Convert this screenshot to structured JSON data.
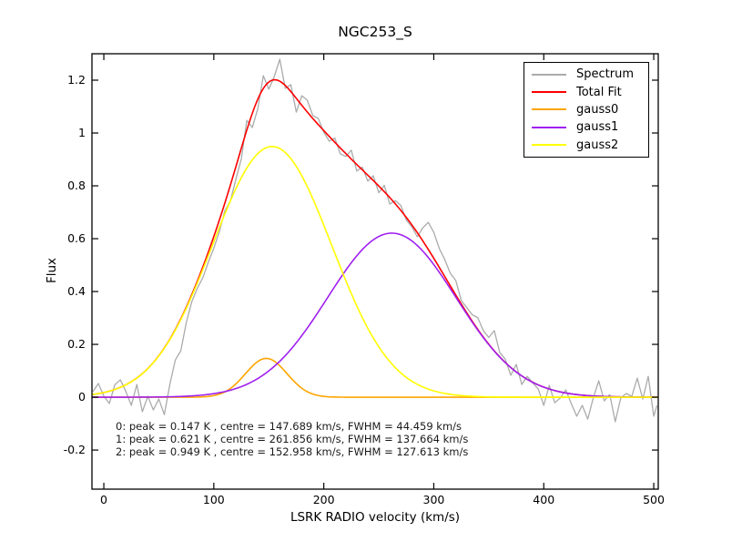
{
  "chart_data": {
    "type": "line",
    "title": "NGC253_S",
    "xlabel": "LSRK RADIO velocity (km/s)",
    "ylabel": "Flux",
    "xlim": [
      -10.8,
      504.1
    ],
    "ylim": [
      -0.348,
      1.3
    ],
    "x_ticks": [
      0,
      100,
      200,
      300,
      400,
      500
    ],
    "y_ticks": [
      -0.2,
      0,
      0.2,
      0.4,
      0.6,
      0.8,
      1,
      1.2
    ],
    "grid": false,
    "legend_position": "upper right",
    "series": [
      {
        "name": "Spectrum",
        "kind": "noisy_data",
        "color": "#ababab",
        "points": [
          [
            -10,
            0.021
          ],
          [
            -5,
            0.052
          ],
          [
            0,
            0.004
          ],
          [
            5,
            -0.024
          ],
          [
            10,
            0.047
          ],
          [
            15,
            0.066
          ],
          [
            20,
            0.022
          ],
          [
            25,
            -0.031
          ],
          [
            30,
            0.048
          ],
          [
            35,
            -0.055
          ],
          [
            40,
            0.003
          ],
          [
            45,
            -0.048
          ],
          [
            50,
            -0.007
          ],
          [
            55,
            -0.066
          ],
          [
            60,
            0.048
          ],
          [
            65,
            0.141
          ],
          [
            70,
            0.176
          ],
          [
            75,
            0.283
          ],
          [
            80,
            0.362
          ],
          [
            85,
            0.412
          ],
          [
            90,
            0.452
          ],
          [
            95,
            0.511
          ],
          [
            100,
            0.564
          ],
          [
            105,
            0.626
          ],
          [
            110,
            0.705
          ],
          [
            115,
            0.742
          ],
          [
            120,
            0.824
          ],
          [
            125,
            0.902
          ],
          [
            130,
            1.048
          ],
          [
            135,
            1.021
          ],
          [
            140,
            1.092
          ],
          [
            145,
            1.217
          ],
          [
            150,
            1.166
          ],
          [
            155,
            1.214
          ],
          [
            160,
            1.279
          ],
          [
            165,
            1.169
          ],
          [
            170,
            1.183
          ],
          [
            175,
            1.079
          ],
          [
            180,
            1.141
          ],
          [
            185,
            1.124
          ],
          [
            190,
            1.066
          ],
          [
            195,
            1.055
          ],
          [
            200,
            1.003
          ],
          [
            205,
            0.969
          ],
          [
            210,
            0.981
          ],
          [
            215,
            0.921
          ],
          [
            220,
            0.911
          ],
          [
            225,
            0.935
          ],
          [
            230,
            0.856
          ],
          [
            235,
            0.871
          ],
          [
            240,
            0.818
          ],
          [
            245,
            0.838
          ],
          [
            250,
            0.774
          ],
          [
            255,
            0.802
          ],
          [
            260,
            0.731
          ],
          [
            265,
            0.744
          ],
          [
            270,
            0.726
          ],
          [
            275,
            0.671
          ],
          [
            280,
            0.645
          ],
          [
            285,
            0.607
          ],
          [
            290,
            0.641
          ],
          [
            295,
            0.662
          ],
          [
            300,
            0.624
          ],
          [
            305,
            0.563
          ],
          [
            310,
            0.521
          ],
          [
            315,
            0.469
          ],
          [
            320,
            0.442
          ],
          [
            325,
            0.366
          ],
          [
            330,
            0.339
          ],
          [
            335,
            0.312
          ],
          [
            340,
            0.301
          ],
          [
            345,
            0.252
          ],
          [
            350,
            0.226
          ],
          [
            355,
            0.252
          ],
          [
            360,
            0.169
          ],
          [
            365,
            0.144
          ],
          [
            370,
            0.083
          ],
          [
            375,
            0.124
          ],
          [
            380,
            0.048
          ],
          [
            385,
            0.079
          ],
          [
            390,
            0.054
          ],
          [
            395,
            0.031
          ],
          [
            400,
            -0.031
          ],
          [
            405,
            0.045
          ],
          [
            410,
            -0.021
          ],
          [
            415,
            -0.003
          ],
          [
            420,
            0.028
          ],
          [
            425,
            -0.024
          ],
          [
            430,
            -0.072
          ],
          [
            435,
            -0.031
          ],
          [
            440,
            -0.083
          ],
          [
            445,
            -0.003
          ],
          [
            450,
            0.062
          ],
          [
            455,
            -0.014
          ],
          [
            460,
            0.01
          ],
          [
            465,
            -0.093
          ],
          [
            470,
            -0.003
          ],
          [
            475,
            0.014
          ],
          [
            480,
            0.003
          ],
          [
            485,
            0.072
          ],
          [
            490,
            -0.007
          ],
          [
            495,
            0.079
          ],
          [
            500,
            -0.072
          ],
          [
            503,
            -0.031
          ]
        ]
      },
      {
        "name": "Total Fit",
        "kind": "sum_of_gaussians",
        "color": "#ff0000"
      },
      {
        "name": "gauss0",
        "kind": "gaussian",
        "color": "#ffa500",
        "gaussian": {
          "peak_K": 0.147,
          "centre_kms": 147.689,
          "fwhm_kms": 44.459
        }
      },
      {
        "name": "gauss1",
        "kind": "gaussian",
        "color": "#a020f0",
        "gaussian": {
          "peak_K": 0.621,
          "centre_kms": 261.856,
          "fwhm_kms": 137.664
        }
      },
      {
        "name": "gauss2",
        "kind": "gaussian",
        "color": "#ffff00",
        "gaussian": {
          "peak_K": 0.949,
          "centre_kms": 152.958,
          "fwhm_kms": 127.613
        }
      }
    ]
  },
  "legend": {
    "entries": [
      {
        "label": "Spectrum",
        "color": "#ababab"
      },
      {
        "label": "Total Fit",
        "color": "#ff0000"
      },
      {
        "label": "gauss0",
        "color": "#ffa500"
      },
      {
        "label": "gauss1",
        "color": "#a020f0"
      },
      {
        "label": "gauss2",
        "color": "#ffff00"
      }
    ]
  },
  "annotation": {
    "lines": [
      "0: peak = 0.147 K , centre = 147.689 km/s, FWHM = 44.459 km/s",
      "1: peak = 0.621 K , centre = 261.856 km/s, FWHM = 137.664 km/s",
      "2: peak = 0.949 K , centre = 152.958 km/s, FWHM = 127.613 km/s"
    ]
  }
}
